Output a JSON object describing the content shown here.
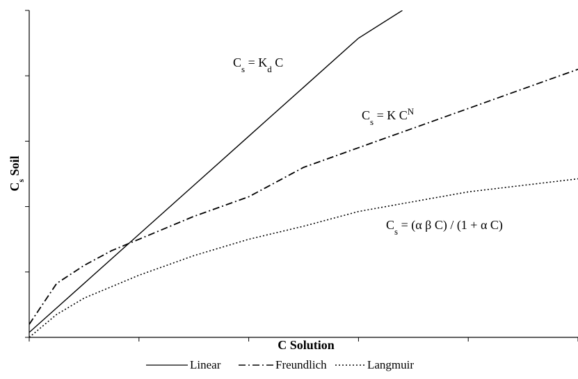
{
  "chart_data": {
    "type": "line",
    "xlabel": "C Solution",
    "ylabel": {
      "main": "C",
      "sub": "s",
      "rest": " Soil"
    },
    "xlim": [
      0,
      1
    ],
    "ylim": [
      0,
      1
    ],
    "x_ticks": [
      0,
      0.2,
      0.4,
      0.6,
      0.8,
      1.0
    ],
    "y_ticks": [
      0,
      0.2,
      0.4,
      0.6,
      0.8,
      1.0
    ],
    "grid": false,
    "legend_position": "bottom",
    "series": [
      {
        "name": "Linear",
        "style": "solid",
        "x": [
          0,
          0.1,
          0.2,
          0.3,
          0.4,
          0.5,
          0.6,
          0.68
        ],
        "y": [
          0.015,
          0.165,
          0.315,
          0.465,
          0.615,
          0.765,
          0.915,
          1.0
        ]
      },
      {
        "name": "Freundlich",
        "style": "dashdot",
        "x": [
          0,
          0.05,
          0.1,
          0.15,
          0.2,
          0.3,
          0.4,
          0.5,
          0.6,
          0.7,
          0.8,
          0.9,
          1.0
        ],
        "y": [
          0.04,
          0.165,
          0.22,
          0.265,
          0.3,
          0.37,
          0.43,
          0.52,
          0.58,
          0.64,
          0.7,
          0.76,
          0.82
        ]
      },
      {
        "name": "Langmuir",
        "style": "dotted",
        "x": [
          0,
          0.05,
          0.1,
          0.2,
          0.3,
          0.4,
          0.5,
          0.6,
          0.7,
          0.8,
          0.9,
          1.0
        ],
        "y": [
          0.0,
          0.07,
          0.12,
          0.19,
          0.25,
          0.3,
          0.34,
          0.385,
          0.415,
          0.445,
          0.465,
          0.485
        ]
      }
    ],
    "annotations": [
      {
        "series": "Linear",
        "parts": [
          [
            "C",
            ""
          ],
          [
            "s",
            "sub"
          ],
          [
            " = K",
            ""
          ],
          [
            "d",
            "sub"
          ],
          [
            " C",
            ""
          ]
        ]
      },
      {
        "series": "Freundlich",
        "parts": [
          [
            "C",
            ""
          ],
          [
            "s",
            "sub"
          ],
          [
            " = K C",
            ""
          ],
          [
            "N",
            "sup"
          ]
        ]
      },
      {
        "series": "Langmuir",
        "parts": [
          [
            "C",
            ""
          ],
          [
            "s",
            "sub"
          ],
          [
            " = (α β C) / (1 + α C)",
            ""
          ]
        ]
      }
    ]
  }
}
